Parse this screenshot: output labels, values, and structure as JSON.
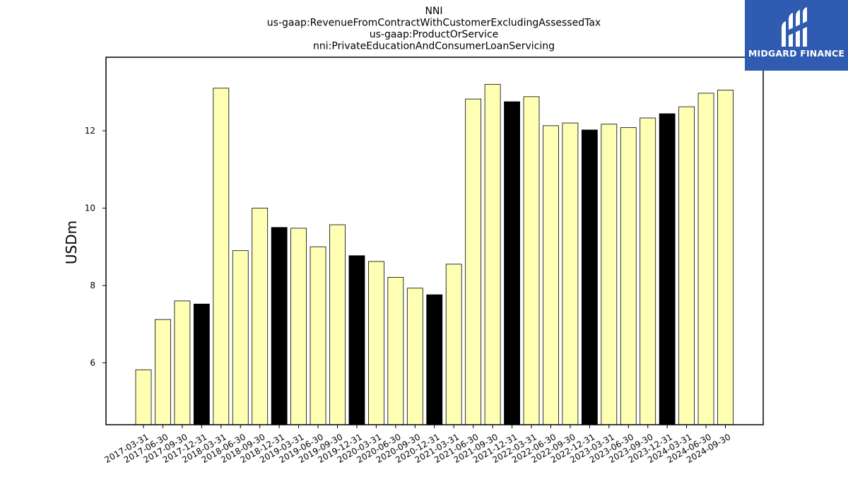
{
  "chart_data": {
    "type": "bar",
    "title_lines": [
      "NNI",
      "us-gaap:RevenueFromContractWithCustomerExcludingAssessedTax",
      "us-gaap:ProductOrService",
      "nni:PrivateEducationAndConsumerLoanServicing"
    ],
    "ylabel": "USDm",
    "xlabel": "",
    "ylim": [
      4.4,
      13.9
    ],
    "yticks": [
      6,
      8,
      10,
      12
    ],
    "grid": false,
    "categories": [
      "2017-03-31",
      "2017-06-30",
      "2017-09-30",
      "2017-12-31",
      "2018-03-31",
      "2018-06-30",
      "2018-09-30",
      "2018-12-31",
      "2019-03-31",
      "2019-06-30",
      "2019-09-30",
      "2019-12-31",
      "2020-03-31",
      "2020-06-30",
      "2020-09-30",
      "2020-12-31",
      "2021-03-31",
      "2021-06-30",
      "2021-09-30",
      "2021-12-31",
      "2022-03-31",
      "2022-06-30",
      "2022-09-30",
      "2022-12-31",
      "2023-03-31",
      "2023-06-30",
      "2023-09-30",
      "2023-12-31",
      "2024-03-31",
      "2024-06-30",
      "2024-09-30"
    ],
    "values": [
      5.82,
      7.12,
      7.6,
      7.52,
      13.1,
      8.9,
      10.0,
      9.5,
      9.48,
      9.0,
      9.57,
      8.77,
      8.62,
      8.21,
      7.93,
      7.76,
      8.55,
      12.82,
      13.2,
      12.75,
      12.88,
      12.13,
      12.2,
      12.02,
      12.17,
      12.08,
      12.33,
      12.44,
      12.62,
      12.97,
      13.05
    ],
    "colors": {
      "quarter": "#ffffb3",
      "year_end": "#000000",
      "edge": "#000000"
    }
  },
  "logo": {
    "text": "MIDGARD FINANCE",
    "background": "#2f5bb0"
  }
}
